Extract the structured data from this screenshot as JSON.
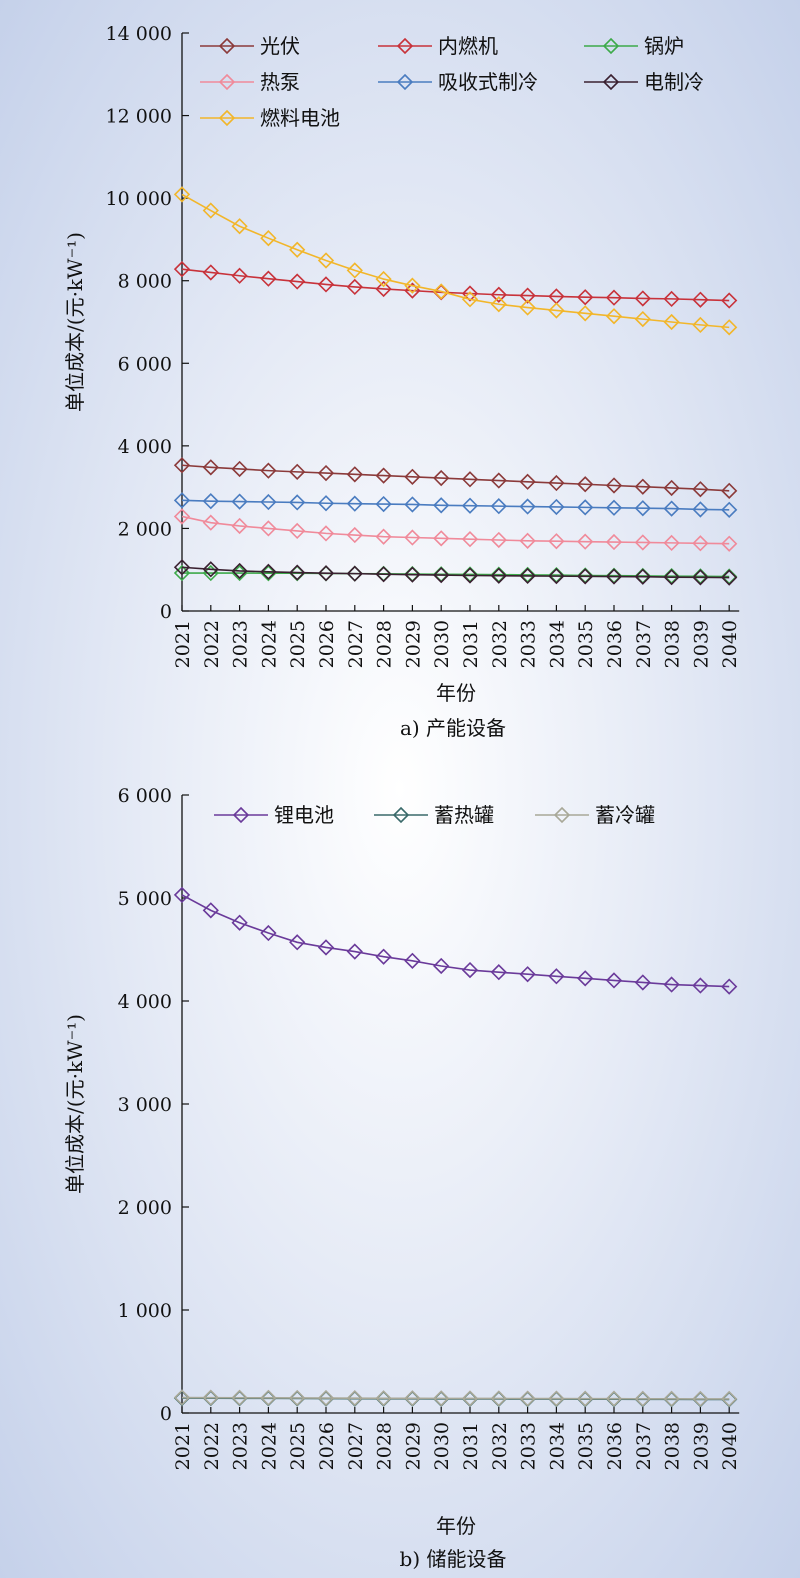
{
  "chart_data": [
    {
      "type": "line",
      "caption": "a) 产能设备",
      "xlabel": "年份",
      "ylabel": "单位成本/(元·kW⁻¹)",
      "x": [
        "2021",
        "2022",
        "2023",
        "2024",
        "2025",
        "2026",
        "2027",
        "2028",
        "2029",
        "2030",
        "2031",
        "2032",
        "2033",
        "2034",
        "2035",
        "2036",
        "2037",
        "2038",
        "2039",
        "2040"
      ],
      "ylim": [
        0,
        14000
      ],
      "yticks": [
        0,
        2000,
        4000,
        6000,
        8000,
        10000,
        12000,
        14000
      ],
      "ytick_labels": [
        "0",
        "2 000",
        "4 000",
        "6 000",
        "8 000",
        "10 000",
        "12 000",
        "14 000"
      ],
      "legend_position": "top",
      "grid": false,
      "series": [
        {
          "name": "光伏",
          "color": "#8b3a3a",
          "marker": "diamond",
          "values": [
            3530,
            3480,
            3440,
            3400,
            3370,
            3340,
            3310,
            3280,
            3250,
            3220,
            3190,
            3160,
            3130,
            3100,
            3070,
            3040,
            3010,
            2980,
            2950,
            2910
          ]
        },
        {
          "name": "内燃机",
          "color": "#c8323a",
          "marker": "diamond",
          "values": [
            8280,
            8200,
            8120,
            8050,
            7980,
            7910,
            7850,
            7800,
            7760,
            7720,
            7690,
            7660,
            7640,
            7620,
            7600,
            7590,
            7570,
            7560,
            7540,
            7520
          ]
        },
        {
          "name": "锅炉",
          "color": "#3daa4a",
          "marker": "diamond",
          "values": [
            920,
            920,
            920,
            915,
            915,
            910,
            905,
            900,
            895,
            890,
            885,
            880,
            875,
            870,
            860,
            855,
            850,
            845,
            840,
            835
          ]
        },
        {
          "name": "热泵",
          "color": "#f08a9a",
          "marker": "diamond",
          "values": [
            2290,
            2140,
            2060,
            2000,
            1940,
            1880,
            1840,
            1800,
            1780,
            1760,
            1740,
            1720,
            1700,
            1690,
            1680,
            1670,
            1660,
            1650,
            1640,
            1630
          ]
        },
        {
          "name": "吸收式制冷",
          "color": "#4a7cc0",
          "marker": "diamond",
          "values": [
            2680,
            2660,
            2650,
            2640,
            2630,
            2610,
            2600,
            2590,
            2580,
            2560,
            2550,
            2540,
            2530,
            2520,
            2510,
            2500,
            2490,
            2480,
            2460,
            2450
          ]
        },
        {
          "name": "电制冷",
          "color": "#3a2030",
          "marker": "diamond",
          "values": [
            1060,
            1010,
            970,
            950,
            930,
            915,
            905,
            890,
            880,
            870,
            860,
            855,
            850,
            845,
            840,
            835,
            830,
            820,
            815,
            810
          ]
        },
        {
          "name": "燃料电池",
          "color": "#f2b62a",
          "marker": "diamond",
          "values": [
            10090,
            9700,
            9320,
            9030,
            8750,
            8490,
            8250,
            8040,
            7880,
            7740,
            7550,
            7430,
            7350,
            7280,
            7210,
            7140,
            7070,
            7000,
            6930,
            6870
          ]
        }
      ]
    },
    {
      "type": "line",
      "caption": "b) 储能设备",
      "xlabel": "年份",
      "ylabel": "单位成本/(元·kW⁻¹)",
      "x": [
        "2021",
        "2022",
        "2023",
        "2024",
        "2025",
        "2026",
        "2027",
        "2028",
        "2029",
        "2030",
        "2031",
        "2032",
        "2033",
        "2034",
        "2035",
        "2036",
        "2037",
        "2038",
        "2039",
        "2040"
      ],
      "ylim": [
        0,
        6000
      ],
      "yticks": [
        0,
        1000,
        2000,
        3000,
        4000,
        5000,
        6000
      ],
      "ytick_labels": [
        "0",
        "1 000",
        "2 000",
        "3 000",
        "4 000",
        "5 000",
        "6 000"
      ],
      "legend_position": "top",
      "grid": false,
      "series": [
        {
          "name": "锂电池",
          "color": "#6a3a9a",
          "marker": "diamond",
          "values": [
            5030,
            4880,
            4760,
            4660,
            4570,
            4520,
            4480,
            4430,
            4390,
            4340,
            4300,
            4280,
            4260,
            4240,
            4220,
            4200,
            4180,
            4160,
            4150,
            4140
          ]
        },
        {
          "name": "蓄热罐",
          "color": "#3a6a6a",
          "marker": "diamond",
          "values": [
            145,
            144,
            143,
            142,
            141,
            140,
            139,
            138,
            138,
            137,
            136,
            136,
            135,
            135,
            134,
            134,
            133,
            133,
            132,
            132
          ]
        },
        {
          "name": "蓄冷罐",
          "color": "#a8a898",
          "marker": "diamond",
          "values": [
            150,
            149,
            148,
            147,
            146,
            145,
            144,
            143,
            143,
            142,
            141,
            141,
            140,
            140,
            139,
            139,
            138,
            138,
            137,
            137
          ]
        }
      ]
    }
  ]
}
